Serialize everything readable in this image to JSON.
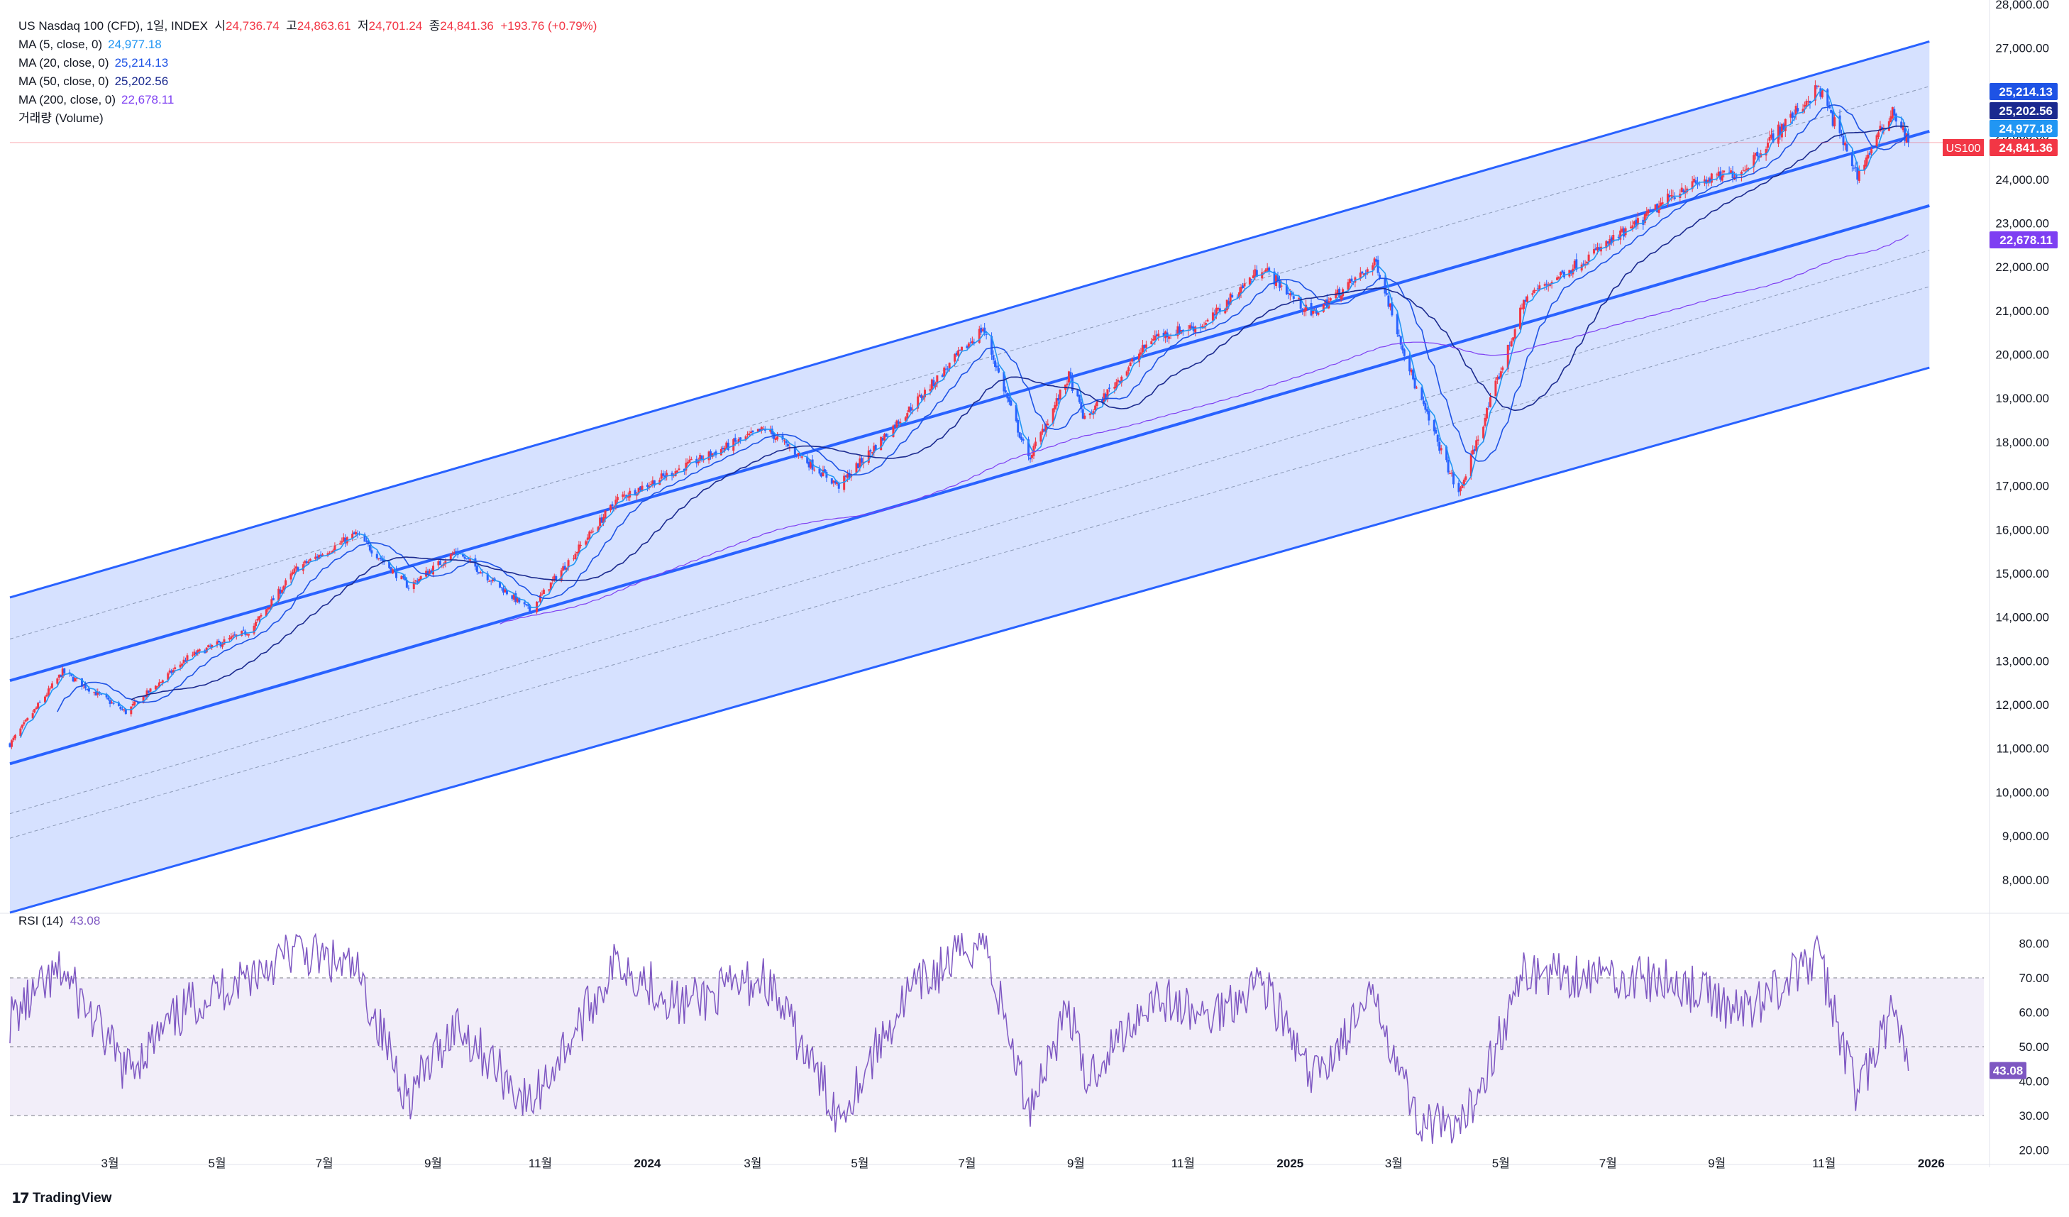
{
  "header": {
    "symbol_line": "US Nasdaq 100 (CFD), 1일, INDEX",
    "open_label": "시",
    "open": "24,736.74",
    "high_label": "고",
    "high": "24,863.61",
    "low_label": "저",
    "low": "24,701.24",
    "close_label": "종",
    "close": "24,841.36",
    "change": "+193.76 (+0.79%)"
  },
  "indicators": [
    {
      "label": "MA (5, close, 0)",
      "value": "24,977.18",
      "color": "#2196f3"
    },
    {
      "label": "MA (20, close, 0)",
      "value": "25,214.13",
      "color": "#1e53e5"
    },
    {
      "label": "MA (50, close, 0)",
      "value": "25,202.56",
      "color": "#1b2a8f"
    },
    {
      "label": "MA (200, close, 0)",
      "value": "22,678.11",
      "color": "#7e3ff2"
    }
  ],
  "volume_label": "거래량 (Volume)",
  "rsi": {
    "label": "RSI (14)",
    "value": "43.08",
    "color": "#7e57c2"
  },
  "price_tags": [
    {
      "text": "25,214.13",
      "price": 25214.13,
      "color": "#1e53e5"
    },
    {
      "text": "25,202.56",
      "price": 25202.56,
      "color": "#1b2a8f"
    },
    {
      "text": "24,977.18",
      "price": 24977.18,
      "color": "#2196f3"
    },
    {
      "text": "24,841.36",
      "price": 24841.36,
      "color": "#f23645",
      "symbol": "US100"
    },
    {
      "text": "22,678.11",
      "price": 22678.11,
      "color": "#7e3ff2"
    }
  ],
  "brand": "TradingView",
  "colors": {
    "up": "#f23645",
    "down": "#2962ff",
    "channel": "#2962ff",
    "channel_fill": "#d1deff"
  },
  "chart_data": [
    {
      "type": "candlestick",
      "title": "US Nasdaq 100 (CFD), 1일, INDEX",
      "ylim": [
        7300,
        28000
      ],
      "y_ticks": [
        8000,
        9000,
        10000,
        11000,
        12000,
        13000,
        14000,
        15000,
        16000,
        17000,
        18000,
        19000,
        20000,
        21000,
        22000,
        23000,
        24000,
        25000,
        26000,
        27000,
        28000
      ],
      "y_tick_labels": [
        "8,000.00",
        "9,000.00",
        "10,000.00",
        "11,000.00",
        "12,000.00",
        "13,000.00",
        "14,000.00",
        "15,000.00",
        "16,000.00",
        "17,000.00",
        "18,000.00",
        "19,000.00",
        "20,000.00",
        "21,000.00",
        "22,000.00",
        "23,000.00",
        "24,000.00",
        "25,000.00",
        "26,000.00",
        "27,000.00",
        "28,000.00"
      ],
      "x_ticks": [
        {
          "label": "3월",
          "date": "2023-03-01"
        },
        {
          "label": "5월",
          "date": "2023-05-01"
        },
        {
          "label": "7월",
          "date": "2023-07-01"
        },
        {
          "label": "9월",
          "date": "2023-09-01"
        },
        {
          "label": "11월",
          "date": "2023-11-01"
        },
        {
          "label": "2024",
          "date": "2024-01-01"
        },
        {
          "label": "3월",
          "date": "2024-03-01"
        },
        {
          "label": "5월",
          "date": "2024-05-01"
        },
        {
          "label": "7월",
          "date": "2024-07-01"
        },
        {
          "label": "9월",
          "date": "2024-09-01"
        },
        {
          "label": "11월",
          "date": "2024-11-01"
        },
        {
          "label": "2025",
          "date": "2025-01-01"
        },
        {
          "label": "3월",
          "date": "2025-03-01"
        },
        {
          "label": "5월",
          "date": "2025-05-01"
        },
        {
          "label": "7월",
          "date": "2025-07-01"
        },
        {
          "label": "9월",
          "date": "2025-09-01"
        },
        {
          "label": "11월",
          "date": "2025-11-01"
        },
        {
          "label": "2026",
          "date": "2026-01-01"
        }
      ],
      "xlim": [
        "2023-01-03",
        "2026-01-31"
      ],
      "close_path": [
        {
          "date": "2023-01-03",
          "close": 11100
        },
        {
          "date": "2023-02-02",
          "close": 12750
        },
        {
          "date": "2023-03-10",
          "close": 11830
        },
        {
          "date": "2023-04-15",
          "close": 13100
        },
        {
          "date": "2023-05-20",
          "close": 13700
        },
        {
          "date": "2023-06-15",
          "close": 15100
        },
        {
          "date": "2023-07-19",
          "close": 15900
        },
        {
          "date": "2023-08-18",
          "close": 14700
        },
        {
          "date": "2023-09-14",
          "close": 15500
        },
        {
          "date": "2023-10-26",
          "close": 14150
        },
        {
          "date": "2023-12-15",
          "close": 16700
        },
        {
          "date": "2024-01-20",
          "close": 17400
        },
        {
          "date": "2024-03-08",
          "close": 18300
        },
        {
          "date": "2024-04-19",
          "close": 17000
        },
        {
          "date": "2024-05-28",
          "close": 18700
        },
        {
          "date": "2024-07-10",
          "close": 20600
        },
        {
          "date": "2024-08-05",
          "close": 17600
        },
        {
          "date": "2024-08-28",
          "close": 19500
        },
        {
          "date": "2024-09-06",
          "close": 18500
        },
        {
          "date": "2024-10-15",
          "close": 20400
        },
        {
          "date": "2024-11-14",
          "close": 20700
        },
        {
          "date": "2024-12-16",
          "close": 22000
        },
        {
          "date": "2025-01-13",
          "close": 20900
        },
        {
          "date": "2025-02-19",
          "close": 22100
        },
        {
          "date": "2025-03-13",
          "close": 19300
        },
        {
          "date": "2025-04-07",
          "close": 16800
        },
        {
          "date": "2025-05-15",
          "close": 21300
        },
        {
          "date": "2025-07-15",
          "close": 22900
        },
        {
          "date": "2025-08-12",
          "close": 23800
        },
        {
          "date": "2025-09-15",
          "close": 24200
        },
        {
          "date": "2025-10-29",
          "close": 26100
        },
        {
          "date": "2025-11-20",
          "close": 24100
        },
        {
          "date": "2025-12-10",
          "close": 25600
        },
        {
          "date": "2025-12-19",
          "close": 24841
        }
      ],
      "series": [
        {
          "name": "MA (5, close, 0)",
          "last": 24977.18
        },
        {
          "name": "MA (20, close, 0)",
          "last": 25214.13
        },
        {
          "name": "MA (50, close, 0)",
          "last": 25202.56
        },
        {
          "name": "MA (200, close, 0)",
          "last": 22678.11
        }
      ],
      "regression_channel": [
        {
          "line": "upper",
          "start": {
            "date": "2023-01-03",
            "value": 14450
          },
          "end": {
            "date": "2025-12-31",
            "value": 27150
          }
        },
        {
          "line": "center",
          "start": {
            "date": "2023-01-03",
            "value": 12550
          },
          "end": {
            "date": "2025-12-31",
            "value": 25100
          }
        },
        {
          "line": "lower-center",
          "start": {
            "date": "2023-01-03",
            "value": 10650
          },
          "end": {
            "date": "2025-12-31",
            "value": 23400
          }
        },
        {
          "line": "lower",
          "start": {
            "date": "2023-01-03",
            "value": 7250
          },
          "end": {
            "date": "2025-12-31",
            "value": 19700
          }
        }
      ],
      "horizontal_line": {
        "value": 24841.36
      }
    },
    {
      "type": "line",
      "title": "RSI (14)",
      "ylim": [
        16,
        84
      ],
      "y_ticks": [
        20,
        30,
        40,
        50,
        60,
        70,
        80
      ],
      "y_tick_labels": [
        "20.00",
        "30.00",
        "40.00",
        "50.00",
        "60.00",
        "70.00",
        "80.00"
      ],
      "band": [
        30,
        70
      ],
      "mid": 50,
      "last": 43.08,
      "path": [
        {
          "date": "2023-01-03",
          "value": 58
        },
        {
          "date": "2023-02-02",
          "value": 72
        },
        {
          "date": "2023-03-10",
          "value": 43
        },
        {
          "date": "2023-04-15",
          "value": 62
        },
        {
          "date": "2023-06-15",
          "value": 78
        },
        {
          "date": "2023-07-19",
          "value": 72
        },
        {
          "date": "2023-08-18",
          "value": 35
        },
        {
          "date": "2023-09-14",
          "value": 57
        },
        {
          "date": "2023-10-26",
          "value": 33
        },
        {
          "date": "2023-12-15",
          "value": 75
        },
        {
          "date": "2024-01-20",
          "value": 62
        },
        {
          "date": "2024-03-08",
          "value": 70
        },
        {
          "date": "2024-04-19",
          "value": 30
        },
        {
          "date": "2024-05-28",
          "value": 65
        },
        {
          "date": "2024-07-10",
          "value": 82
        },
        {
          "date": "2024-08-05",
          "value": 32
        },
        {
          "date": "2024-08-28",
          "value": 62
        },
        {
          "date": "2024-09-06",
          "value": 40
        },
        {
          "date": "2024-10-15",
          "value": 65
        },
        {
          "date": "2024-11-14",
          "value": 58
        },
        {
          "date": "2024-12-16",
          "value": 70
        },
        {
          "date": "2025-01-13",
          "value": 40
        },
        {
          "date": "2025-02-19",
          "value": 65
        },
        {
          "date": "2025-03-13",
          "value": 30
        },
        {
          "date": "2025-04-07",
          "value": 24
        },
        {
          "date": "2025-05-15",
          "value": 72
        },
        {
          "date": "2025-07-15",
          "value": 70
        },
        {
          "date": "2025-08-12",
          "value": 68
        },
        {
          "date": "2025-09-15",
          "value": 60
        },
        {
          "date": "2025-10-29",
          "value": 76
        },
        {
          "date": "2025-11-20",
          "value": 36
        },
        {
          "date": "2025-12-10",
          "value": 60
        },
        {
          "date": "2025-12-19",
          "value": 43
        }
      ]
    }
  ]
}
